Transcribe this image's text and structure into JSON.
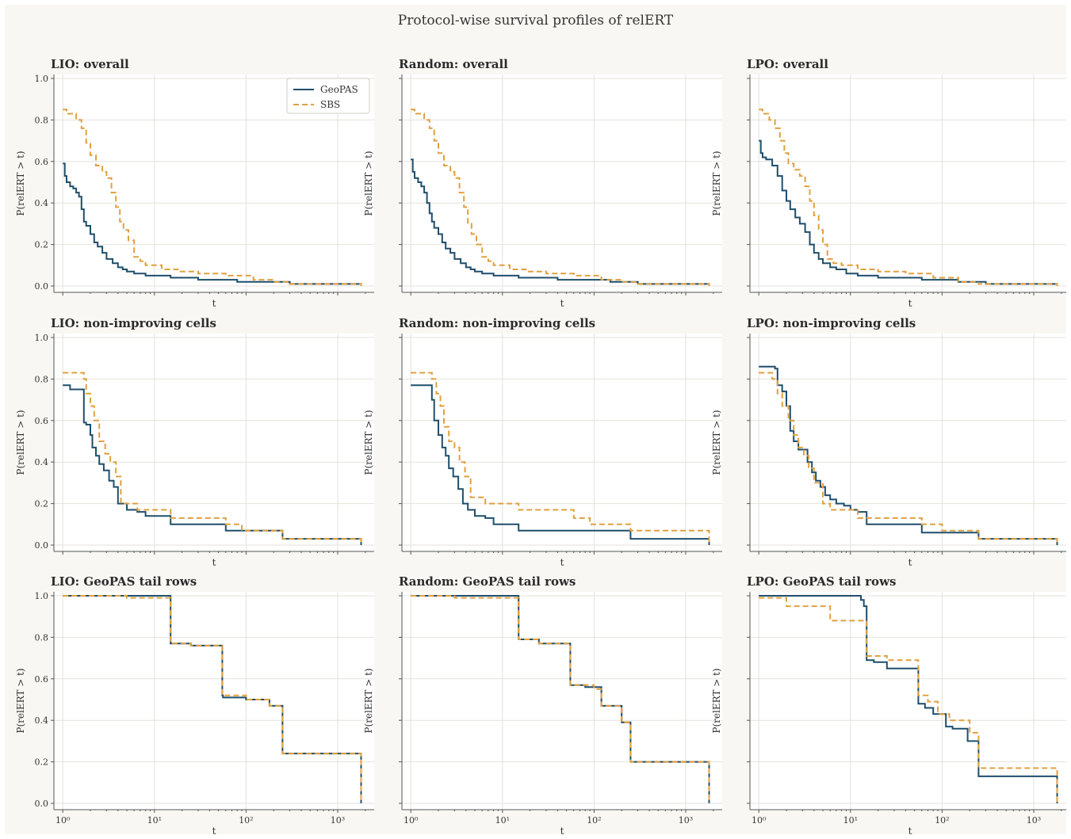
{
  "figure": {
    "title": "Protocol-wise survival profiles of relERT"
  },
  "colors": {
    "GeoPAS": "#1f4e6b",
    "SBS": "#e0a040",
    "grid": "#e4e2dc",
    "axes_bg": "#ffffff",
    "figure_bg": "#f8f7f3"
  },
  "legend": {
    "entries": [
      {
        "name": "GeoPAS",
        "style": "solid"
      },
      {
        "name": "SBS",
        "style": "dashed"
      }
    ],
    "placement": "upper right of first panel"
  },
  "chart_data": [
    {
      "type": "line",
      "title": "LIO: overall",
      "xlabel": "t",
      "ylabel": "P(relERT > t)",
      "xscale": "log",
      "xlim": [
        0.8,
        2500
      ],
      "ylim": [
        0,
        1.0
      ],
      "yticks": [
        "0.0",
        "0.2",
        "0.4",
        "0.6",
        "0.8",
        "1.0"
      ],
      "xticks": [],
      "series": [
        {
          "name": "GeoPAS",
          "x": [
            1,
            1.05,
            1.1,
            1.2,
            1.3,
            1.4,
            1.5,
            1.6,
            1.7,
            1.8,
            2.0,
            2.2,
            2.4,
            2.7,
            3.0,
            3.5,
            4.0,
            4.5,
            5.0,
            6.0,
            8.0,
            15,
            30,
            80,
            300,
            1800
          ],
          "y": [
            0.59,
            0.53,
            0.5,
            0.48,
            0.47,
            0.45,
            0.43,
            0.37,
            0.31,
            0.29,
            0.25,
            0.21,
            0.19,
            0.16,
            0.13,
            0.11,
            0.09,
            0.08,
            0.07,
            0.06,
            0.05,
            0.04,
            0.03,
            0.02,
            0.01,
            0.0
          ]
        },
        {
          "name": "SBS",
          "x": [
            1,
            1.1,
            1.4,
            1.6,
            1.8,
            2.0,
            2.3,
            2.7,
            3.0,
            3.4,
            3.8,
            4.2,
            4.6,
            5.2,
            6.0,
            7.0,
            8.0,
            12,
            18,
            30,
            60,
            120,
            200,
            300,
            1800
          ],
          "y": [
            0.85,
            0.83,
            0.8,
            0.76,
            0.69,
            0.63,
            0.58,
            0.55,
            0.52,
            0.45,
            0.38,
            0.31,
            0.27,
            0.22,
            0.14,
            0.12,
            0.1,
            0.08,
            0.07,
            0.06,
            0.05,
            0.03,
            0.02,
            0.01,
            0.0
          ]
        }
      ]
    },
    {
      "type": "line",
      "title": "Random: overall",
      "xlabel": "t",
      "ylabel": "P(relERT > t)",
      "xscale": "log",
      "xlim": [
        0.8,
        2500
      ],
      "ylim": [
        0,
        1.0
      ],
      "yticks": [],
      "xticks": [],
      "series": [
        {
          "name": "GeoPAS",
          "x": [
            1,
            1.05,
            1.1,
            1.2,
            1.3,
            1.4,
            1.5,
            1.6,
            1.7,
            1.8,
            2.0,
            2.2,
            2.4,
            2.7,
            3.0,
            3.5,
            4.0,
            4.5,
            5.0,
            6.0,
            8.0,
            15,
            40,
            150,
            300,
            1800
          ],
          "y": [
            0.61,
            0.55,
            0.52,
            0.5,
            0.48,
            0.45,
            0.4,
            0.35,
            0.31,
            0.28,
            0.25,
            0.21,
            0.18,
            0.16,
            0.13,
            0.11,
            0.09,
            0.08,
            0.07,
            0.06,
            0.05,
            0.04,
            0.03,
            0.02,
            0.01,
            0.0
          ]
        },
        {
          "name": "SBS",
          "x": [
            1,
            1.1,
            1.4,
            1.6,
            1.8,
            2.0,
            2.3,
            2.7,
            3.0,
            3.4,
            3.8,
            4.2,
            4.6,
            5.2,
            6.0,
            7.0,
            8.0,
            12,
            18,
            30,
            60,
            120,
            200,
            300,
            1800
          ],
          "y": [
            0.85,
            0.83,
            0.8,
            0.76,
            0.7,
            0.64,
            0.58,
            0.55,
            0.52,
            0.45,
            0.38,
            0.3,
            0.25,
            0.2,
            0.14,
            0.12,
            0.1,
            0.08,
            0.07,
            0.06,
            0.05,
            0.03,
            0.02,
            0.01,
            0.0
          ]
        }
      ]
    },
    {
      "type": "line",
      "title": "LPO: overall",
      "xlabel": "t",
      "ylabel": "P(relERT > t)",
      "xscale": "log",
      "xlim": [
        0.8,
        2500
      ],
      "ylim": [
        0,
        1.0
      ],
      "yticks": [],
      "xticks": [],
      "series": [
        {
          "name": "GeoPAS",
          "x": [
            1,
            1.05,
            1.1,
            1.2,
            1.4,
            1.6,
            1.8,
            2.0,
            2.2,
            2.5,
            2.8,
            3.2,
            3.6,
            4.0,
            4.5,
            5.0,
            6.0,
            7.0,
            9.0,
            12,
            20,
            60,
            150,
            300,
            1800
          ],
          "y": [
            0.7,
            0.64,
            0.62,
            0.61,
            0.58,
            0.53,
            0.46,
            0.41,
            0.37,
            0.33,
            0.3,
            0.26,
            0.2,
            0.16,
            0.13,
            0.11,
            0.09,
            0.08,
            0.06,
            0.05,
            0.04,
            0.03,
            0.02,
            0.01,
            0.0
          ]
        },
        {
          "name": "SBS",
          "x": [
            1,
            1.1,
            1.3,
            1.5,
            1.7,
            1.9,
            2.1,
            2.4,
            2.8,
            3.2,
            3.6,
            4.0,
            4.5,
            5.0,
            5.6,
            6.5,
            8.0,
            12,
            20,
            40,
            80,
            150,
            250,
            1800
          ],
          "y": [
            0.85,
            0.83,
            0.8,
            0.76,
            0.7,
            0.64,
            0.59,
            0.56,
            0.53,
            0.48,
            0.41,
            0.34,
            0.27,
            0.2,
            0.13,
            0.11,
            0.1,
            0.08,
            0.07,
            0.06,
            0.04,
            0.02,
            0.01,
            0.0
          ]
        }
      ]
    },
    {
      "type": "line",
      "title": "LIO: non-improving cells",
      "xlabel": "t",
      "ylabel": "P(relERT > t)",
      "xscale": "log",
      "xlim": [
        0.8,
        2500
      ],
      "ylim": [
        0,
        1.0
      ],
      "yticks": [
        "0.0",
        "0.2",
        "0.4",
        "0.6",
        "0.8",
        "1.0"
      ],
      "xticks": [],
      "series": [
        {
          "name": "GeoPAS",
          "x": [
            1,
            1.2,
            1.5,
            1.7,
            1.8,
            2.0,
            2.1,
            2.3,
            2.5,
            2.8,
            3.2,
            3.6,
            4.0,
            5.0,
            6.5,
            8.0,
            15,
            60,
            250,
            1800
          ],
          "y": [
            0.77,
            0.75,
            0.75,
            0.59,
            0.58,
            0.53,
            0.47,
            0.43,
            0.39,
            0.36,
            0.31,
            0.28,
            0.2,
            0.17,
            0.16,
            0.14,
            0.1,
            0.07,
            0.03,
            0.0
          ]
        },
        {
          "name": "SBS",
          "x": [
            1,
            1.7,
            1.8,
            2.0,
            2.2,
            2.5,
            2.9,
            3.3,
            3.8,
            4.3,
            6.5,
            15,
            60,
            90,
            250,
            1800
          ],
          "y": [
            0.83,
            0.8,
            0.73,
            0.67,
            0.6,
            0.5,
            0.44,
            0.4,
            0.33,
            0.2,
            0.17,
            0.13,
            0.1,
            0.07,
            0.03,
            0.0
          ]
        }
      ]
    },
    {
      "type": "line",
      "title": "Random: non-improving cells",
      "xlabel": "t",
      "ylabel": "P(relERT > t)",
      "xscale": "log",
      "xlim": [
        0.8,
        2500
      ],
      "ylim": [
        0,
        1.0
      ],
      "yticks": [],
      "xticks": [],
      "series": [
        {
          "name": "GeoPAS",
          "x": [
            1,
            1.7,
            1.8,
            2.0,
            2.2,
            2.4,
            2.6,
            2.9,
            3.3,
            3.7,
            4.2,
            5.0,
            6.5,
            8.0,
            15,
            60,
            250,
            1800
          ],
          "y": [
            0.77,
            0.7,
            0.6,
            0.53,
            0.47,
            0.43,
            0.37,
            0.33,
            0.27,
            0.2,
            0.17,
            0.14,
            0.13,
            0.1,
            0.07,
            0.07,
            0.03,
            0.0
          ]
        },
        {
          "name": "SBS",
          "x": [
            1,
            1.7,
            1.9,
            2.1,
            2.3,
            2.6,
            3.0,
            3.4,
            3.9,
            4.5,
            6.5,
            15,
            60,
            90,
            250,
            1800
          ],
          "y": [
            0.83,
            0.8,
            0.73,
            0.67,
            0.57,
            0.5,
            0.47,
            0.4,
            0.33,
            0.23,
            0.2,
            0.17,
            0.13,
            0.1,
            0.07,
            0.0
          ]
        }
      ]
    },
    {
      "type": "line",
      "title": "LPO: non-improving cells",
      "xlabel": "t",
      "ylabel": "P(relERT > t)",
      "xscale": "log",
      "xlim": [
        0.8,
        2500
      ],
      "ylim": [
        0,
        1.0
      ],
      "yticks": [],
      "xticks": [],
      "series": [
        {
          "name": "GeoPAS",
          "x": [
            1,
            1.5,
            1.6,
            1.8,
            2.0,
            2.2,
            2.4,
            2.7,
            3.0,
            3.4,
            3.8,
            4.2,
            4.7,
            5.3,
            6.0,
            7.0,
            8.5,
            10,
            12,
            15,
            60,
            250,
            1800
          ],
          "y": [
            0.86,
            0.85,
            0.77,
            0.74,
            0.67,
            0.55,
            0.5,
            0.46,
            0.46,
            0.4,
            0.35,
            0.31,
            0.28,
            0.24,
            0.22,
            0.2,
            0.19,
            0.17,
            0.16,
            0.1,
            0.06,
            0.03,
            0.0
          ]
        },
        {
          "name": "SBS",
          "x": [
            1,
            1.4,
            1.6,
            1.8,
            2.1,
            2.4,
            2.7,
            3.1,
            3.5,
            4.0,
            5.0,
            6.0,
            8.0,
            12,
            20,
            60,
            100,
            250,
            1800
          ],
          "y": [
            0.83,
            0.8,
            0.73,
            0.67,
            0.6,
            0.53,
            0.47,
            0.43,
            0.37,
            0.3,
            0.2,
            0.17,
            0.17,
            0.13,
            0.13,
            0.1,
            0.07,
            0.03,
            0.0
          ]
        }
      ]
    },
    {
      "type": "line",
      "title": "LIO: GeoPAS tail rows",
      "xlabel": "t",
      "ylabel": "P(relERT > t)",
      "xscale": "log",
      "xlim": [
        0.8,
        2500
      ],
      "ylim": [
        0,
        1.0
      ],
      "yticks": [
        "0.0",
        "0.2",
        "0.4",
        "0.6",
        "0.8",
        "1.0"
      ],
      "xticks": [
        {
          "v": 1,
          "label": "10⁰"
        },
        {
          "v": 10,
          "label": "10¹"
        },
        {
          "v": 100,
          "label": "10²"
        },
        {
          "v": 1000,
          "label": "10³"
        }
      ],
      "series": [
        {
          "name": "GeoPAS",
          "x": [
            1,
            14,
            15,
            25,
            55,
            56,
            100,
            180,
            250,
            1800
          ],
          "y": [
            1.0,
            1.0,
            0.77,
            0.76,
            0.52,
            0.51,
            0.5,
            0.47,
            0.24,
            0.0
          ]
        },
        {
          "name": "SBS",
          "x": [
            1,
            5,
            15,
            25,
            55,
            100,
            180,
            250,
            1800
          ],
          "y": [
            1.0,
            0.99,
            0.77,
            0.76,
            0.52,
            0.5,
            0.47,
            0.24,
            0.0
          ]
        }
      ]
    },
    {
      "type": "line",
      "title": "Random: GeoPAS tail rows",
      "xlabel": "t",
      "ylabel": "P(relERT > t)",
      "xscale": "log",
      "xlim": [
        0.8,
        2500
      ],
      "ylim": [
        0,
        1.0
      ],
      "yticks": [],
      "xticks": [
        {
          "v": 1,
          "label": "10⁰"
        },
        {
          "v": 10,
          "label": "10¹"
        },
        {
          "v": 100,
          "label": "10²"
        },
        {
          "v": 1000,
          "label": "10³"
        }
      ],
      "series": [
        {
          "name": "GeoPAS",
          "x": [
            1,
            15,
            25,
            55,
            80,
            100,
            120,
            200,
            250,
            1800
          ],
          "y": [
            1.0,
            0.79,
            0.77,
            0.57,
            0.56,
            0.56,
            0.47,
            0.39,
            0.2,
            0.0
          ]
        },
        {
          "name": "SBS",
          "x": [
            1,
            3,
            15,
            25,
            55,
            100,
            120,
            200,
            250,
            1800
          ],
          "y": [
            1.0,
            0.99,
            0.79,
            0.77,
            0.57,
            0.55,
            0.47,
            0.39,
            0.2,
            0.0
          ]
        }
      ]
    },
    {
      "type": "line",
      "title": "LPO: GeoPAS tail rows",
      "xlabel": "t",
      "ylabel": "P(relERT > t)",
      "xscale": "log",
      "xlim": [
        0.8,
        2500
      ],
      "ylim": [
        0,
        1.0
      ],
      "yticks": [],
      "xticks": [
        {
          "v": 1,
          "label": "10⁰"
        },
        {
          "v": 10,
          "label": "10¹"
        },
        {
          "v": 100,
          "label": "10²"
        },
        {
          "v": 1000,
          "label": "10³"
        }
      ],
      "series": [
        {
          "name": "GeoPAS",
          "x": [
            1,
            13,
            14,
            15,
            18,
            25,
            55,
            65,
            80,
            110,
            130,
            190,
            250,
            1800
          ],
          "y": [
            1.0,
            0.98,
            0.95,
            0.69,
            0.68,
            0.65,
            0.48,
            0.46,
            0.43,
            0.37,
            0.36,
            0.3,
            0.13,
            0.0
          ]
        },
        {
          "name": "SBS",
          "x": [
            1,
            2,
            6,
            15,
            25,
            55,
            70,
            90,
            120,
            200,
            250,
            1800
          ],
          "y": [
            0.99,
            0.95,
            0.88,
            0.71,
            0.69,
            0.52,
            0.49,
            0.43,
            0.4,
            0.34,
            0.17,
            0.0
          ]
        }
      ]
    }
  ]
}
